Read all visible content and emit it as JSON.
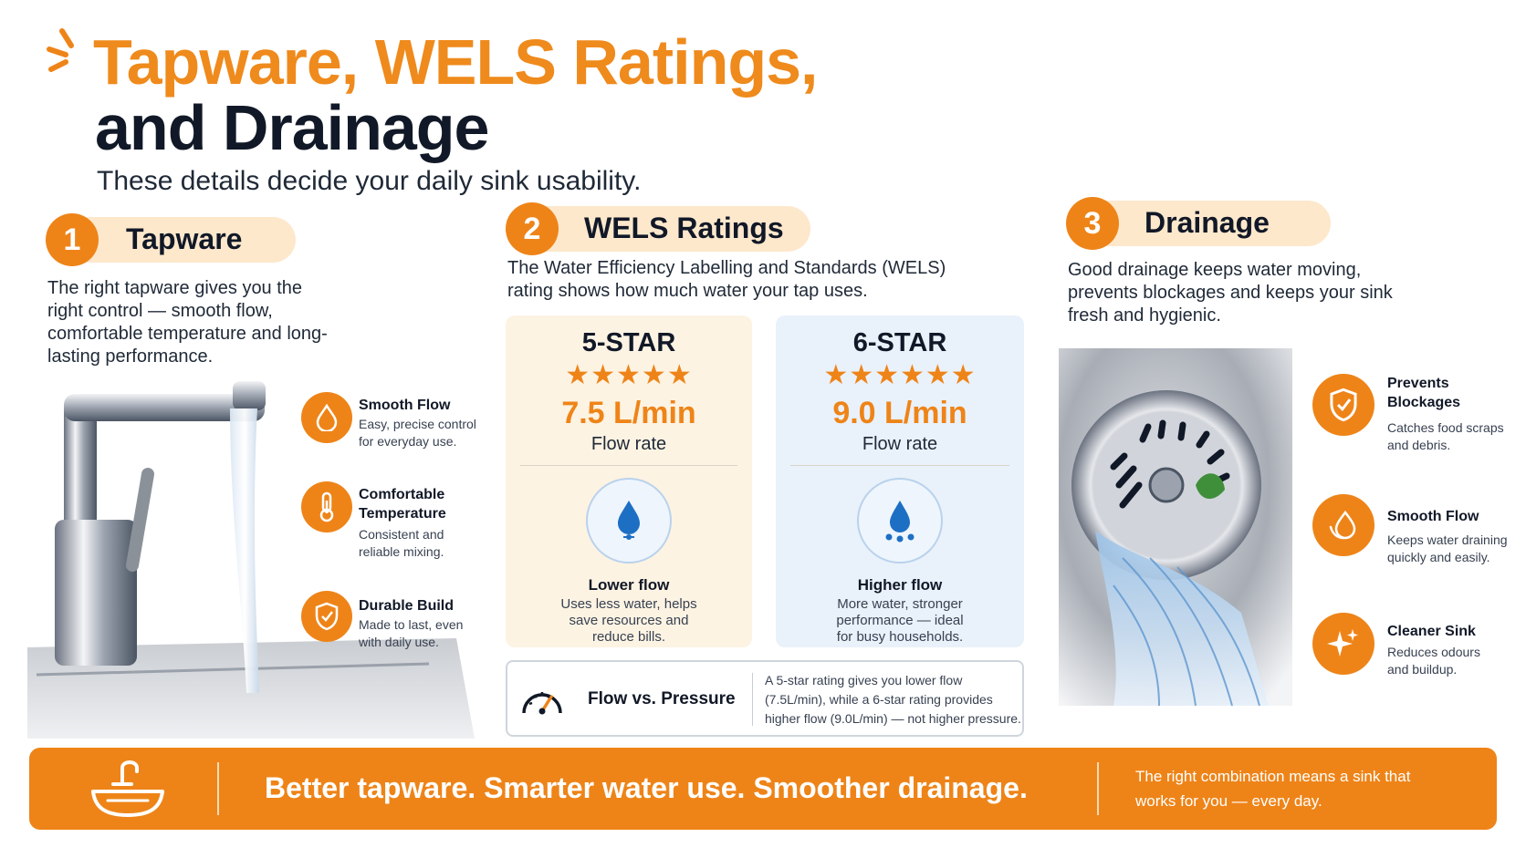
{
  "header": {
    "title_line1": "Tapware, WELS Ratings,",
    "title_line2": "and Drainage",
    "subtitle": "These details decide your daily sink usability."
  },
  "colors": {
    "accent": "#ee8418",
    "dark": "#111827",
    "pill": "#fde8cc",
    "card_5_star": "#fdf3e3",
    "card_6_star": "#e9f1fa"
  },
  "tapware": {
    "number": "1",
    "heading": "Tapware",
    "description": "The right tapware gives you the right control — smooth flow, comfortable temperature and long-lasting performance.",
    "features": [
      {
        "icon": "water-drop-icon",
        "title": "Smooth Flow",
        "desc": "Easy, precise control for everyday use."
      },
      {
        "icon": "thermometer-icon",
        "title": "Comfortable Temperature",
        "desc": "Consistent and reliable mixing."
      },
      {
        "icon": "shield-check-icon",
        "title": "Durable Build",
        "desc": "Made to last, even with daily use."
      }
    ]
  },
  "wels": {
    "number": "2",
    "heading": "WELS Ratings",
    "description": "The Water Efficiency Labelling and Standards (WELS) rating shows how much water your tap uses.",
    "cards": [
      {
        "rating": "5-STAR",
        "stars": "★★★★★",
        "star_count": 5,
        "flow": "7.5 L/min",
        "flow_label": "Flow rate",
        "flow_title": "Lower flow",
        "flow_desc": "Uses less water, helps save resources and reduce bills."
      },
      {
        "rating": "6-STAR",
        "stars": "★★★★★★",
        "star_count": 6,
        "flow": "9.0 L/min",
        "flow_label": "Flow rate",
        "flow_title": "Higher flow",
        "flow_desc": "More water, stronger performance — ideal for busy households."
      }
    ],
    "pressure": {
      "label": "Flow vs. Pressure",
      "note": "A 5-star rating gives you lower flow (7.5L/min), while a 6-star rating provides higher flow (9.0L/min) — not higher pressure."
    }
  },
  "drainage": {
    "number": "3",
    "heading": "Drainage",
    "description": "Good drainage keeps water moving, prevents blockages and keeps your sink fresh and hygienic.",
    "features": [
      {
        "icon": "shield-check-icon",
        "title": "Prevents Blockages",
        "desc": "Catches food scraps and debris."
      },
      {
        "icon": "flow-drop-icon",
        "title": "Smooth Flow",
        "desc": "Keeps water draining quickly and easily."
      },
      {
        "icon": "sparkle-icon",
        "title": "Cleaner Sink",
        "desc": "Reduces odours and buildup."
      }
    ]
  },
  "footer": {
    "icon": "sink-tap-icon",
    "tagline": "Better tapware. Smarter water use. Smoother drainage.",
    "note": "The right combination means a sink that works for you — every day."
  }
}
